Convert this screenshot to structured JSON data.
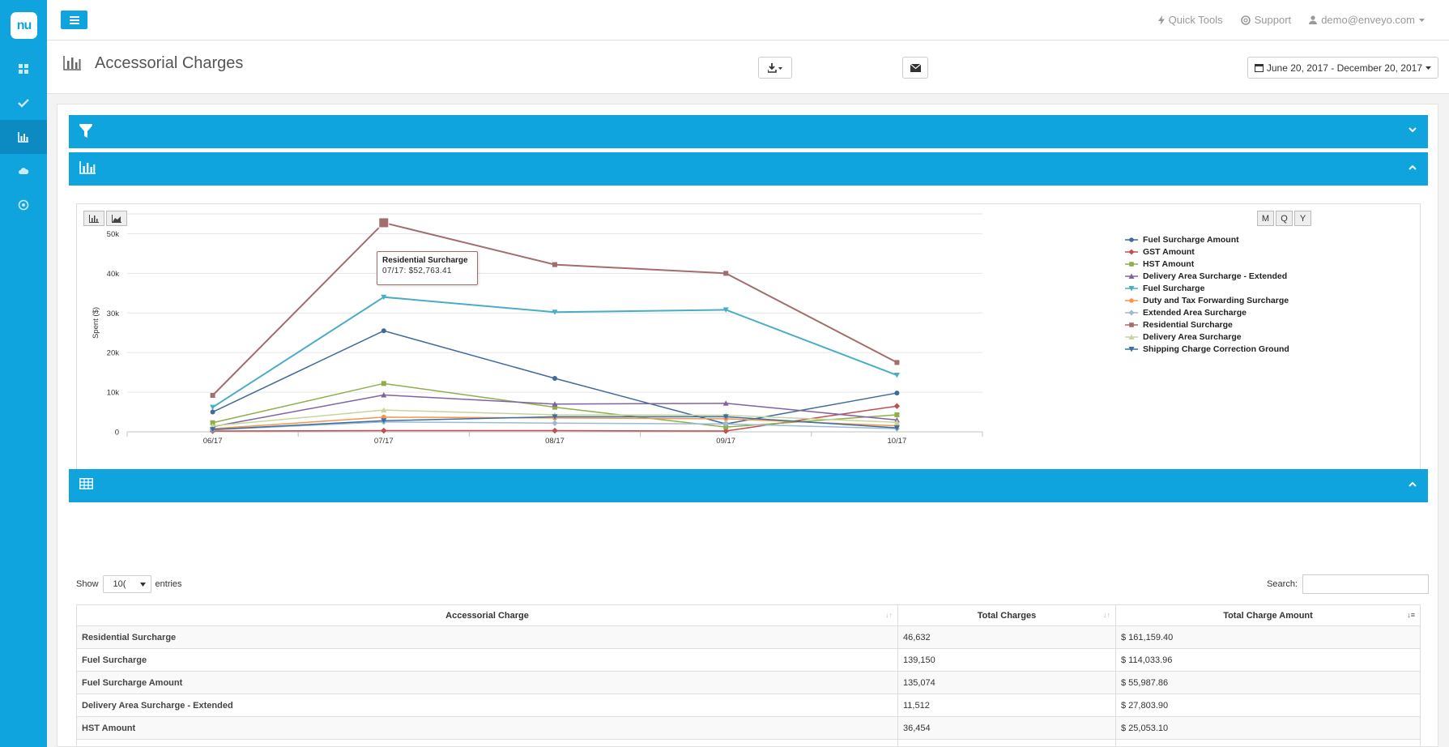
{
  "app": {
    "logo_text": "nu"
  },
  "sidebar": {
    "items": [
      {
        "icon": "dashboard-icon"
      },
      {
        "icon": "check-icon"
      },
      {
        "icon": "bar-chart-icon",
        "active": true
      },
      {
        "icon": "cloud-icon"
      },
      {
        "icon": "target-icon"
      }
    ]
  },
  "topbar": {
    "quick_tools": "Quick Tools",
    "support": "Support",
    "user": "demo@enveyo.com"
  },
  "page": {
    "title": "Accessorial Charges",
    "date_range": "June 20, 2017 - December 20, 2017"
  },
  "tooltip": {
    "series": "Residential Surcharge",
    "value_text": "07/17: $52,763.41"
  },
  "chart_data": {
    "type": "line",
    "x": [
      "06/17",
      "07/17",
      "08/17",
      "09/17",
      "10/17"
    ],
    "ylabel": "Spent ($)",
    "ylim": [
      0,
      55000
    ],
    "yticks": [
      0,
      10000,
      20000,
      30000,
      40000,
      50000
    ],
    "ytick_labels": [
      "0",
      "10k",
      "20k",
      "30k",
      "40k",
      "50k"
    ],
    "grid": true,
    "legend_position": "right",
    "period_buttons": [
      "M",
      "Q",
      "Y"
    ],
    "series": [
      {
        "name": "Fuel Surcharge Amount",
        "color": "#40699c",
        "marker": "circle",
        "values": [
          5000,
          25500,
          13500,
          2000,
          9800
        ]
      },
      {
        "name": "GST Amount",
        "color": "#c0504d",
        "marker": "diamond",
        "values": [
          200,
          300,
          300,
          200,
          6500
        ]
      },
      {
        "name": "HST Amount",
        "color": "#8fae4a",
        "marker": "square",
        "values": [
          2300,
          12200,
          6200,
          1200,
          4300
        ]
      },
      {
        "name": "Delivery Area Surcharge - Extended",
        "color": "#8064a2",
        "marker": "triangle",
        "values": [
          1300,
          9300,
          7000,
          7200,
          3000
        ]
      },
      {
        "name": "Fuel Surcharge",
        "color": "#4bacc6",
        "marker": "triangle-down",
        "values": [
          6200,
          34000,
          30200,
          30800,
          14300
        ]
      },
      {
        "name": "Duty and Tax Forwarding Surcharge",
        "color": "#f79646",
        "marker": "circle",
        "values": [
          800,
          3700,
          3500,
          3300,
          1500
        ]
      },
      {
        "name": "Extended Area Surcharge",
        "color": "#9bbad6",
        "marker": "diamond",
        "values": [
          500,
          2500,
          2200,
          2000,
          800
        ]
      },
      {
        "name": "Residential Surcharge",
        "color": "#a36d6d",
        "marker": "square",
        "values": [
          9200,
          52763.41,
          42200,
          40000,
          17500
        ]
      },
      {
        "name": "Delivery Area Surcharge",
        "color": "#c4d69b",
        "marker": "triangle",
        "values": [
          1500,
          5500,
          4300,
          4200,
          2400
        ]
      },
      {
        "name": "Shipping Charge Correction Ground",
        "color": "#3a6fa3",
        "marker": "triangle-down",
        "values": [
          600,
          2800,
          3800,
          3800,
          1000
        ]
      }
    ]
  },
  "table": {
    "show_label": "Show",
    "entries_value": "10(",
    "entries_label": "entries",
    "search_label": "Search:",
    "columns": [
      "Accessorial Charge",
      "Total Charges",
      "Total Charge Amount"
    ],
    "rows": [
      [
        "Residential Surcharge",
        "46,632",
        "$ 161,159.40"
      ],
      [
        "Fuel Surcharge",
        "139,150",
        "$ 114,033.96"
      ],
      [
        "Fuel Surcharge Amount",
        "135,074",
        "$ 55,987.86"
      ],
      [
        "Delivery Area Surcharge - Extended",
        "11,512",
        "$ 27,803.90"
      ],
      [
        "HST Amount",
        "36,454",
        "$ 25,053.10"
      ],
      [
        "",
        "",
        ""
      ]
    ]
  }
}
